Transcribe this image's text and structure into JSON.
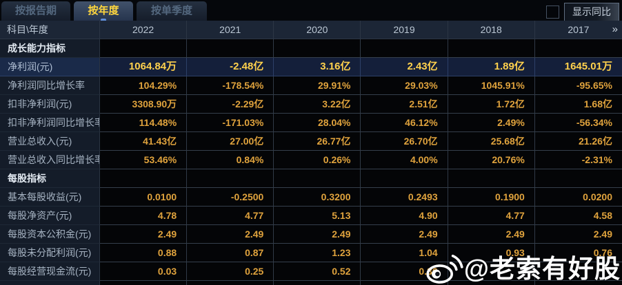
{
  "tabs": [
    {
      "label": "按报告期",
      "active": false
    },
    {
      "label": "按年度",
      "active": true
    },
    {
      "label": "按单季度",
      "active": false
    }
  ],
  "controls": {
    "show_yoy_label": "显示同比",
    "checkbox_checked": false
  },
  "table": {
    "corner_header": "科目\\年度",
    "years": [
      "2022",
      "2021",
      "2020",
      "2019",
      "2018",
      "2017"
    ],
    "more_years_icon": "»",
    "rows": [
      {
        "type": "section",
        "label": "成长能力指标",
        "values": [
          "",
          "",
          "",
          "",
          "",
          ""
        ]
      },
      {
        "type": "data",
        "highlight": true,
        "label": "净利润(元)",
        "values": [
          "1064.84万",
          "-2.48亿",
          "3.16亿",
          "2.43亿",
          "1.89亿",
          "1645.01万"
        ]
      },
      {
        "type": "data",
        "label": "净利润同比增长率",
        "values": [
          "104.29%",
          "-178.54%",
          "29.91%",
          "29.03%",
          "1045.91%",
          "-95.65%"
        ]
      },
      {
        "type": "data",
        "label": "扣非净利润(元)",
        "values": [
          "3308.90万",
          "-2.29亿",
          "3.22亿",
          "2.51亿",
          "1.72亿",
          "1.68亿"
        ]
      },
      {
        "type": "data",
        "label": "扣非净利润同比增长率",
        "values": [
          "114.48%",
          "-171.03%",
          "28.04%",
          "46.12%",
          "2.49%",
          "-56.34%"
        ]
      },
      {
        "type": "data",
        "label": "营业总收入(元)",
        "values": [
          "41.43亿",
          "27.00亿",
          "26.77亿",
          "26.70亿",
          "25.68亿",
          "21.26亿"
        ]
      },
      {
        "type": "data",
        "label": "营业总收入同比增长率",
        "values": [
          "53.46%",
          "0.84%",
          "0.26%",
          "4.00%",
          "20.76%",
          "-2.31%"
        ]
      },
      {
        "type": "section",
        "label": "每股指标",
        "values": [
          "",
          "",
          "",
          "",
          "",
          ""
        ]
      },
      {
        "type": "data",
        "label": "基本每股收益(元)",
        "values": [
          "0.0100",
          "-0.2500",
          "0.3200",
          "0.2493",
          "0.1900",
          "0.0200"
        ]
      },
      {
        "type": "data",
        "label": "每股净资产(元)",
        "values": [
          "4.78",
          "4.77",
          "5.13",
          "4.90",
          "4.77",
          "4.58"
        ]
      },
      {
        "type": "data",
        "label": "每股资本公积金(元)",
        "values": [
          "2.49",
          "2.49",
          "2.49",
          "2.49",
          "2.49",
          "2.49"
        ]
      },
      {
        "type": "data",
        "label": "每股未分配利润(元)",
        "values": [
          "0.88",
          "0.87",
          "1.23",
          "1.04",
          "0.93",
          "0.76"
        ]
      },
      {
        "type": "data",
        "label": "每股经营现金流(元)",
        "values": [
          "0.03",
          "0.25",
          "0.52",
          "0.36",
          "",
          ""
        ]
      },
      {
        "type": "partial",
        "label": "",
        "values": [
          "",
          "",
          "",
          "",
          "",
          ""
        ]
      }
    ]
  },
  "watermark": {
    "handle": "@老索有好股",
    "icon": "weibo-icon"
  },
  "colors": {
    "accent_yellow": "#ffd73e",
    "value_amber": "#e0a33d",
    "highlight_value": "#ffd14d",
    "highlight_row_bg": "#141f3a",
    "header_bg": "#1c2636",
    "label_bg": "#141c29",
    "cell_bg": "#040507"
  }
}
